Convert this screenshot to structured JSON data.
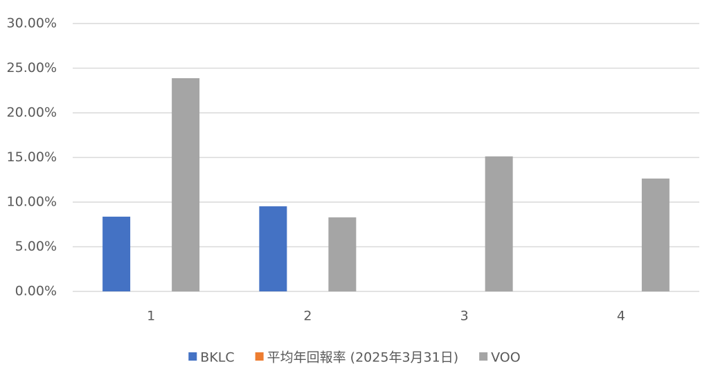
{
  "chart_data": {
    "type": "bar",
    "categories": [
      "1",
      "2",
      "3",
      "4"
    ],
    "series": [
      {
        "name": "BKLC",
        "color": "#4472c4",
        "values": [
          8.37,
          9.53,
          null,
          null
        ]
      },
      {
        "name": "平均年回報率 (2025年3月31日)",
        "color": "#ed7d31",
        "values": [
          null,
          null,
          null,
          null
        ]
      },
      {
        "name": "VOO",
        "color": "#a5a5a5",
        "values": [
          23.88,
          8.29,
          15.12,
          12.64
        ]
      }
    ],
    "ylim": [
      0,
      30
    ],
    "yticks": [
      {
        "value": 0,
        "label": "0.00%"
      },
      {
        "value": 5,
        "label": "5.00%"
      },
      {
        "value": 10,
        "label": "10.00%"
      },
      {
        "value": 15,
        "label": "15.00%"
      },
      {
        "value": 20,
        "label": "20.00%"
      },
      {
        "value": 25,
        "label": "25.00%"
      },
      {
        "value": 30,
        "label": "30.00%"
      }
    ],
    "grid": true,
    "legend": "bottom"
  }
}
